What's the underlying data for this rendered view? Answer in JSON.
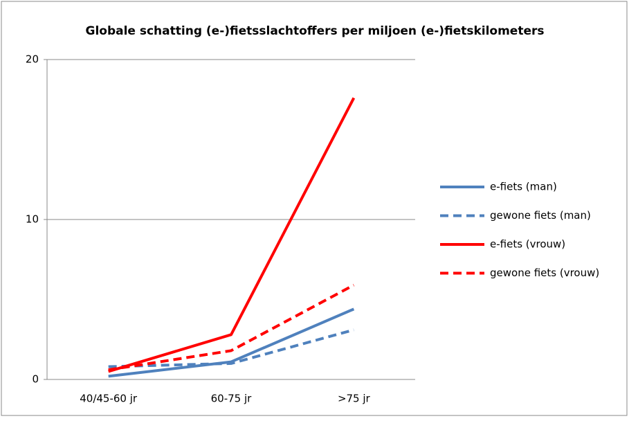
{
  "chart_data": {
    "type": "line",
    "title": "Globale schatting (e-)fietsslachtoffers per miljoen (e-)fietskilometers",
    "categories": [
      "40/45-60 jr",
      "60-75 jr",
      ">75 jr"
    ],
    "series": [
      {
        "name": "e-fiets (man)",
        "color": "#4f81bd",
        "dash": false,
        "values": [
          0.2,
          1.1,
          4.4
        ]
      },
      {
        "name": "gewone fiets (man)",
        "color": "#4f81bd",
        "dash": true,
        "values": [
          0.8,
          1.0,
          3.1
        ]
      },
      {
        "name": "e-fiets (vrouw)",
        "color": "#ff0000",
        "dash": false,
        "values": [
          0.5,
          2.8,
          17.6
        ]
      },
      {
        "name": "gewone fiets (vrouw)",
        "color": "#ff0000",
        "dash": true,
        "values": [
          0.6,
          1.8,
          5.9
        ]
      }
    ],
    "ylim": [
      0,
      20
    ],
    "yticks": [
      0,
      10,
      20
    ],
    "grid": true,
    "legend": "right"
  }
}
